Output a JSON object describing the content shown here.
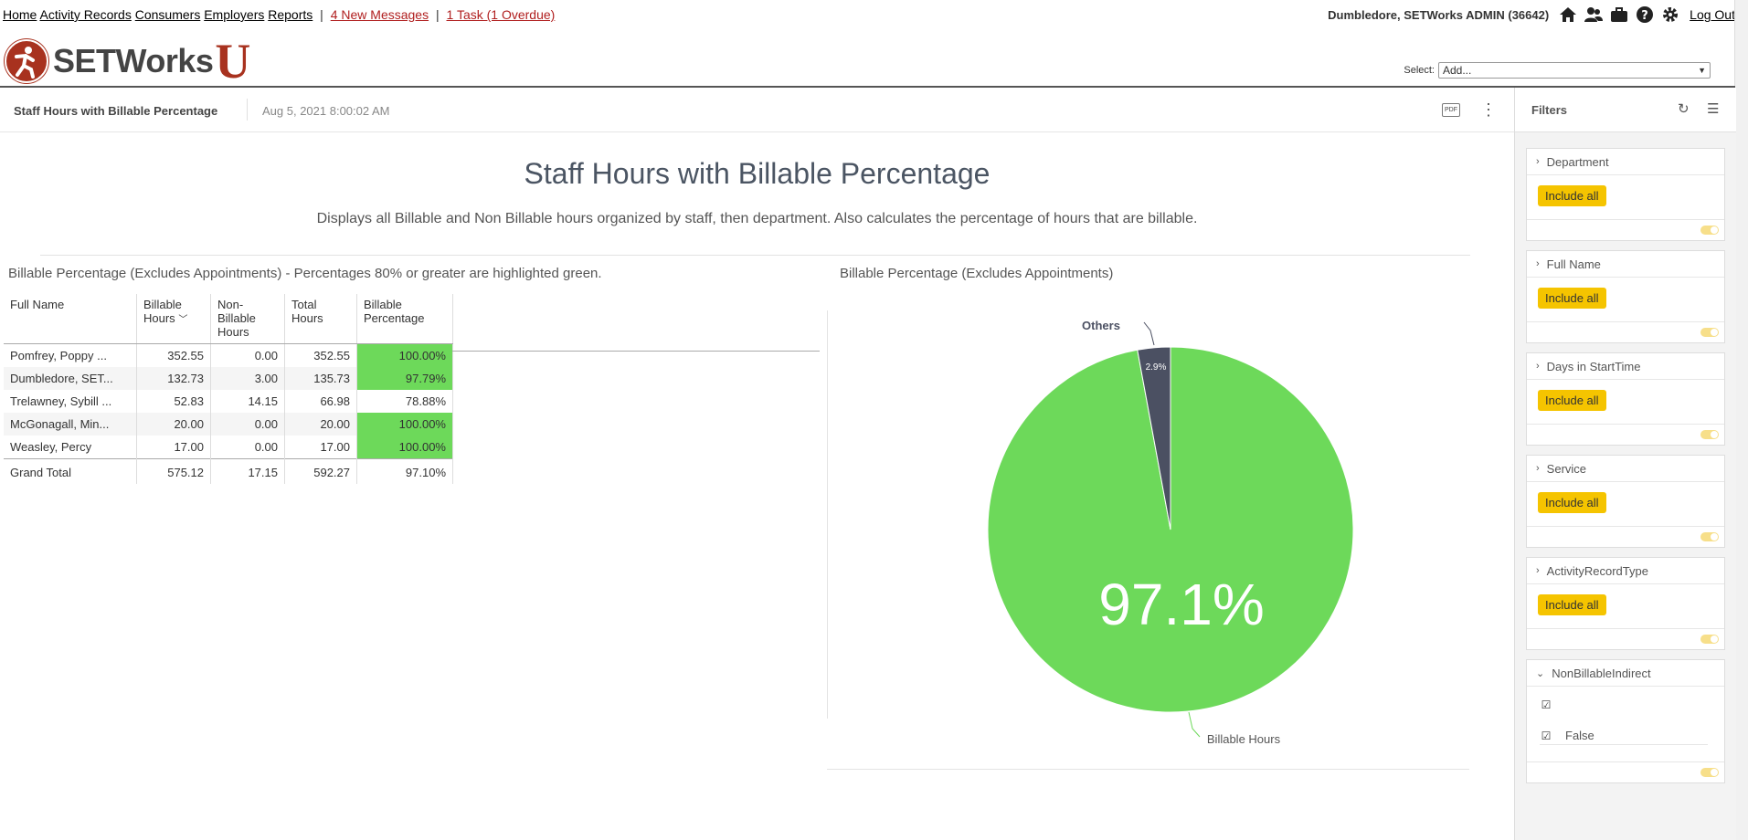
{
  "nav": {
    "links": [
      "Home",
      "Activity Records",
      "Consumers",
      "Employers",
      "Reports"
    ],
    "messages": "4 New Messages",
    "tasks": "1 Task (1 Overdue)",
    "user": "Dumbledore, SETWorks ADMIN (36642)",
    "logout": "Log Out",
    "icons": [
      "home-icon",
      "people-icon",
      "briefcase-icon",
      "help-icon",
      "gear-icon"
    ]
  },
  "logo": {
    "word": "SETWorks",
    "letter": "U"
  },
  "select": {
    "label": "Select:",
    "value": "Add..."
  },
  "dashboard": {
    "title": "Staff Hours with Billable Percentage",
    "date": "Aug 5, 2021 8:00:02 AM",
    "pdf": "PDF"
  },
  "main": {
    "title": "Staff Hours with Billable Percentage",
    "description": "Displays all Billable and Non Billable hours organized by staff, then department. Also calculates the percentage of hours that are billable.",
    "table_title": "Billable Percentage (Excludes Appointments) - Percentages 80% or greater are highlighted green.",
    "chart_title": "Billable Percentage (Excludes Appointments)"
  },
  "table": {
    "headers": [
      "Full Name",
      "Billable Hours",
      "Non-Billable Hours",
      "Total Hours",
      "Billable Percentage"
    ],
    "rows": [
      [
        "Pomfrey, Poppy ...",
        "352.55",
        "0.00",
        "352.55",
        "100.00%"
      ],
      [
        "Dumbledore, SET...",
        "132.73",
        "3.00",
        "135.73",
        "97.79%"
      ],
      [
        "Trelawney, Sybill ...",
        "52.83",
        "14.15",
        "66.98",
        "78.88%"
      ],
      [
        "McGonagall, Min...",
        "20.00",
        "0.00",
        "20.00",
        "100.00%"
      ],
      [
        "Weasley, Percy",
        "17.00",
        "0.00",
        "17.00",
        "100.00%"
      ]
    ],
    "total": [
      "Grand Total",
      "575.12",
      "17.15",
      "592.27",
      "97.10%"
    ]
  },
  "chart_data": {
    "type": "pie",
    "title": "Billable Percentage (Excludes Appointments)",
    "slices": [
      {
        "label": "Billable Hours",
        "value": 97.1,
        "color": "#6dd95a"
      },
      {
        "label": "Others",
        "value": 2.9,
        "color": "#4b5062"
      }
    ],
    "center_label": "97.1%",
    "small_label": "2.9%"
  },
  "filters": {
    "title": "Filters",
    "include_label": "Include all",
    "cards": [
      "Department",
      "Full Name",
      "Days in StartTime",
      "Service",
      "ActivityRecordType"
    ],
    "last_card": {
      "title": "NonBillableIndirect",
      "option": "False"
    }
  }
}
